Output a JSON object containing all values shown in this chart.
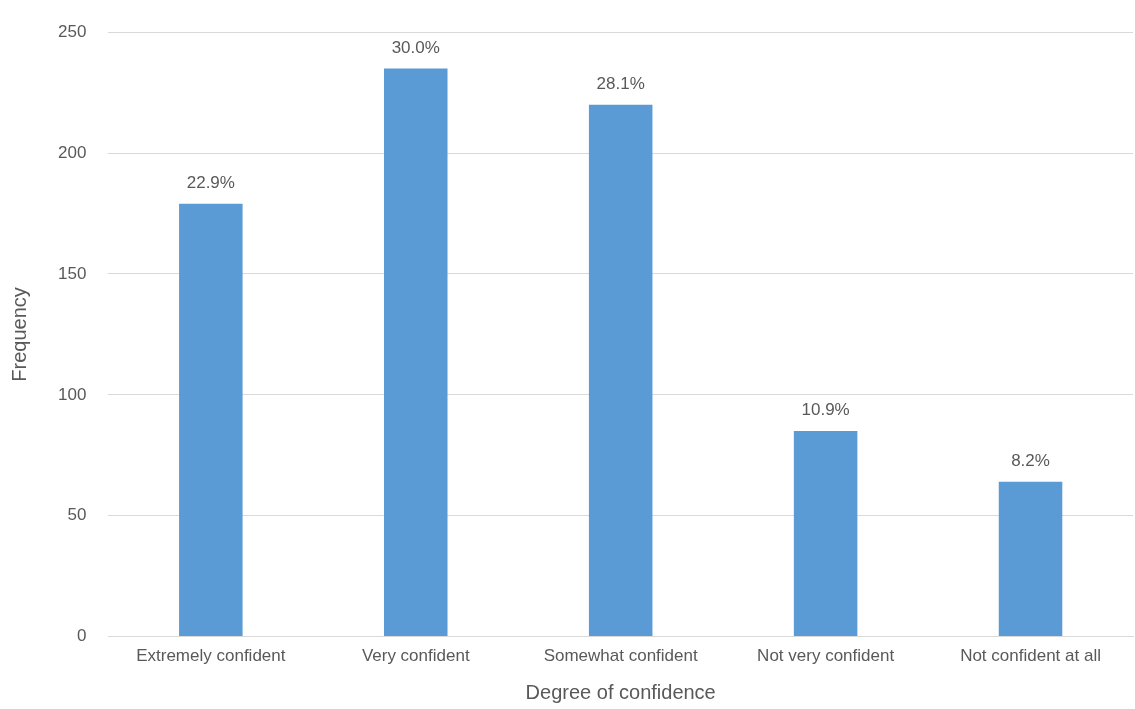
{
  "chart_data": {
    "type": "bar",
    "xlabel": "Degree of confidence",
    "ylabel": "Frequency",
    "categories": [
      "Extremely confident",
      "Very confident",
      "Somewhat confident",
      "Not very confident",
      "Not confident at all"
    ],
    "values": [
      179,
      235,
      220,
      85,
      64
    ],
    "annotations": [
      {
        "text": "22.9%",
        "x": "Extremely confident",
        "y": 179
      },
      {
        "text": "30.0%",
        "x": "Very confident",
        "y": 235
      },
      {
        "text": "28.1%",
        "x": "Somewhat confident",
        "y": 220
      },
      {
        "text": "10.9%",
        "x": "Not very confident",
        "y": 85
      },
      {
        "text": "8.2%",
        "x": "Not confident at all",
        "y": 64
      }
    ],
    "color": "#5b9bd5",
    "ylim": [
      0,
      250
    ],
    "yticks": [
      0,
      50,
      100,
      150,
      200,
      250
    ],
    "grid": "y",
    "legend": false
  }
}
